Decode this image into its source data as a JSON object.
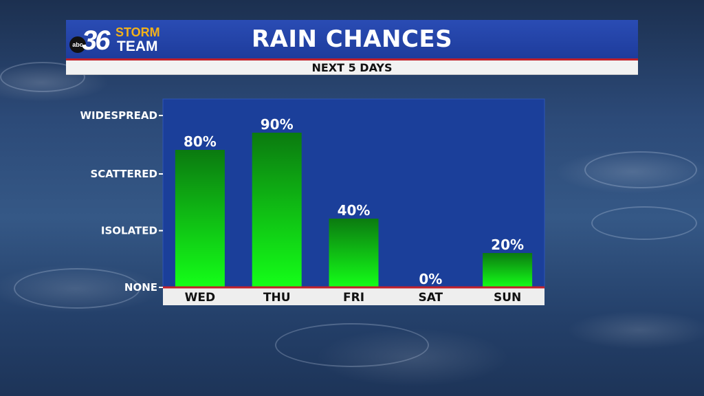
{
  "header": {
    "title": "RAIN CHANCES",
    "subtitle": "NEXT 5 DAYS"
  },
  "logo": {
    "network": "abc",
    "number": "36",
    "line1": "STORM",
    "line2": "TEAM"
  },
  "colors": {
    "header_blue": "#1f3fa3",
    "plot_bg": "#1b3f9a",
    "bar_top": "#0b7a10",
    "bar_bottom": "#14ff18",
    "accent_red": "#c0202a"
  },
  "chart_data": {
    "type": "bar",
    "title": "RAIN CHANCES",
    "subtitle": "NEXT 5 DAYS",
    "categories": [
      "WED",
      "THU",
      "FRI",
      "SAT",
      "SUN"
    ],
    "values": [
      80,
      90,
      40,
      0,
      20
    ],
    "value_labels": [
      "80%",
      "90%",
      "40%",
      "0%",
      "20%"
    ],
    "ylim": [
      0,
      100
    ],
    "yticks": [
      {
        "label": "NONE",
        "value": 0
      },
      {
        "label": "ISOLATED",
        "value": 33
      },
      {
        "label": "SCATTERED",
        "value": 66
      },
      {
        "label": "WIDESPREAD",
        "value": 100
      }
    ],
    "grid": false,
    "legend": "none"
  }
}
